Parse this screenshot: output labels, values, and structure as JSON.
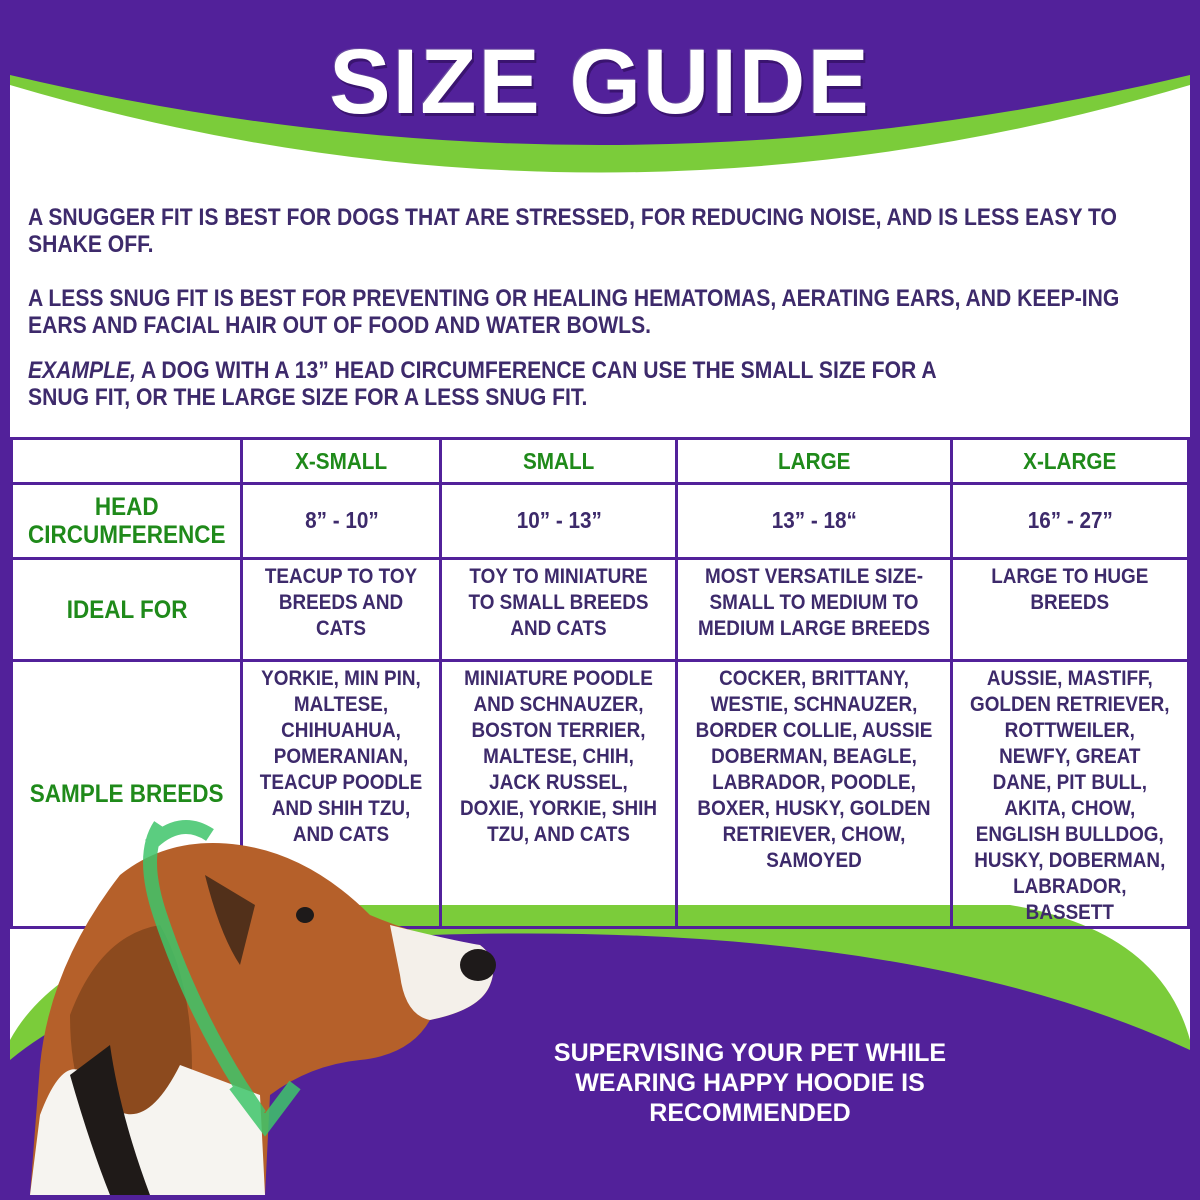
{
  "header": {
    "title": "SIZE GUIDE"
  },
  "intro": {
    "p1": "A SNUGGER FIT IS BEST FOR DOGS THAT ARE STRESSED, FOR REDUCING NOISE, AND IS LESS EASY TO SHAKE OFF.",
    "p2": "A LESS SNUG FIT IS BEST FOR PREVENTING OR HEALING HEMATOMAS, AERATING EARS, AND KEEP-ING EARS AND FACIAL HAIR OUT OF FOOD AND WATER BOWLS.",
    "p3_italic": "EXAMPLE,",
    "p3": " A DOG WITH A 13” HEAD CIRCUMFERENCE CAN USE THE SMALL SIZE FOR A SNUG FIT, OR THE LARGE SIZE FOR A LESS SNUG FIT."
  },
  "table": {
    "columns": [
      "X-SMALL",
      "SMALL",
      "LARGE",
      "X-LARGE"
    ],
    "rows": [
      {
        "label": "HEAD CIRCUMFERENCE",
        "cells": [
          "8” - 10”",
          "10” - 13”",
          "13” - 18“",
          "16” - 27”"
        ]
      },
      {
        "label": "IDEAL FOR",
        "cells": [
          "TEACUP TO TOY BREEDS AND CATS",
          "TOY TO MINIATURE TO SMALL BREEDS AND CATS",
          "MOST VERSATILE SIZE- SMALL TO MEDIUM TO MEDIUM LARGE BREEDS",
          "LARGE TO HUGE BREEDS"
        ]
      },
      {
        "label": "SAMPLE BREEDS",
        "cells": [
          "YORKIE, MIN PIN, MALTESE, CHIHUAHUA, POMERANIAN, TEACUP POODLE AND SHIH TZU, AND CATS",
          "MINIATURE POODLE AND SCHNAUZER, BOSTON TERRIER, MALTESE, CHIH, JACK RUSSEL, DOXIE, YORKIE, SHIH TZU, AND CATS",
          "COCKER, BRITTANY, WESTIE, SCHNAUZER, BORDER COLLIE, AUSSIE DOBERMAN, BEAGLE, LABRADOR, POODLE, BOXER, HUSKY, GOLDEN RETRIEVER, CHOW, SAMOYED",
          "AUSSIE, MASTIFF, GOLDEN RETRIEVER, ROTTWEILER, NEWFY, GREAT DANE, PIT BULL, AKITA, CHOW, ENGLISH BULLDOG, HUSKY, DOBERMAN, LABRADOR, BASSETT"
        ]
      }
    ]
  },
  "footer": {
    "notice": "SUPERVISING YOUR PET WHILE WEARING HAPPY HOODIE IS RECOMMENDED"
  },
  "colors": {
    "purple": "#52219a",
    "green": "#7bcc3a",
    "text": "#3d2a6b",
    "label_green": "#1f8a1a"
  }
}
